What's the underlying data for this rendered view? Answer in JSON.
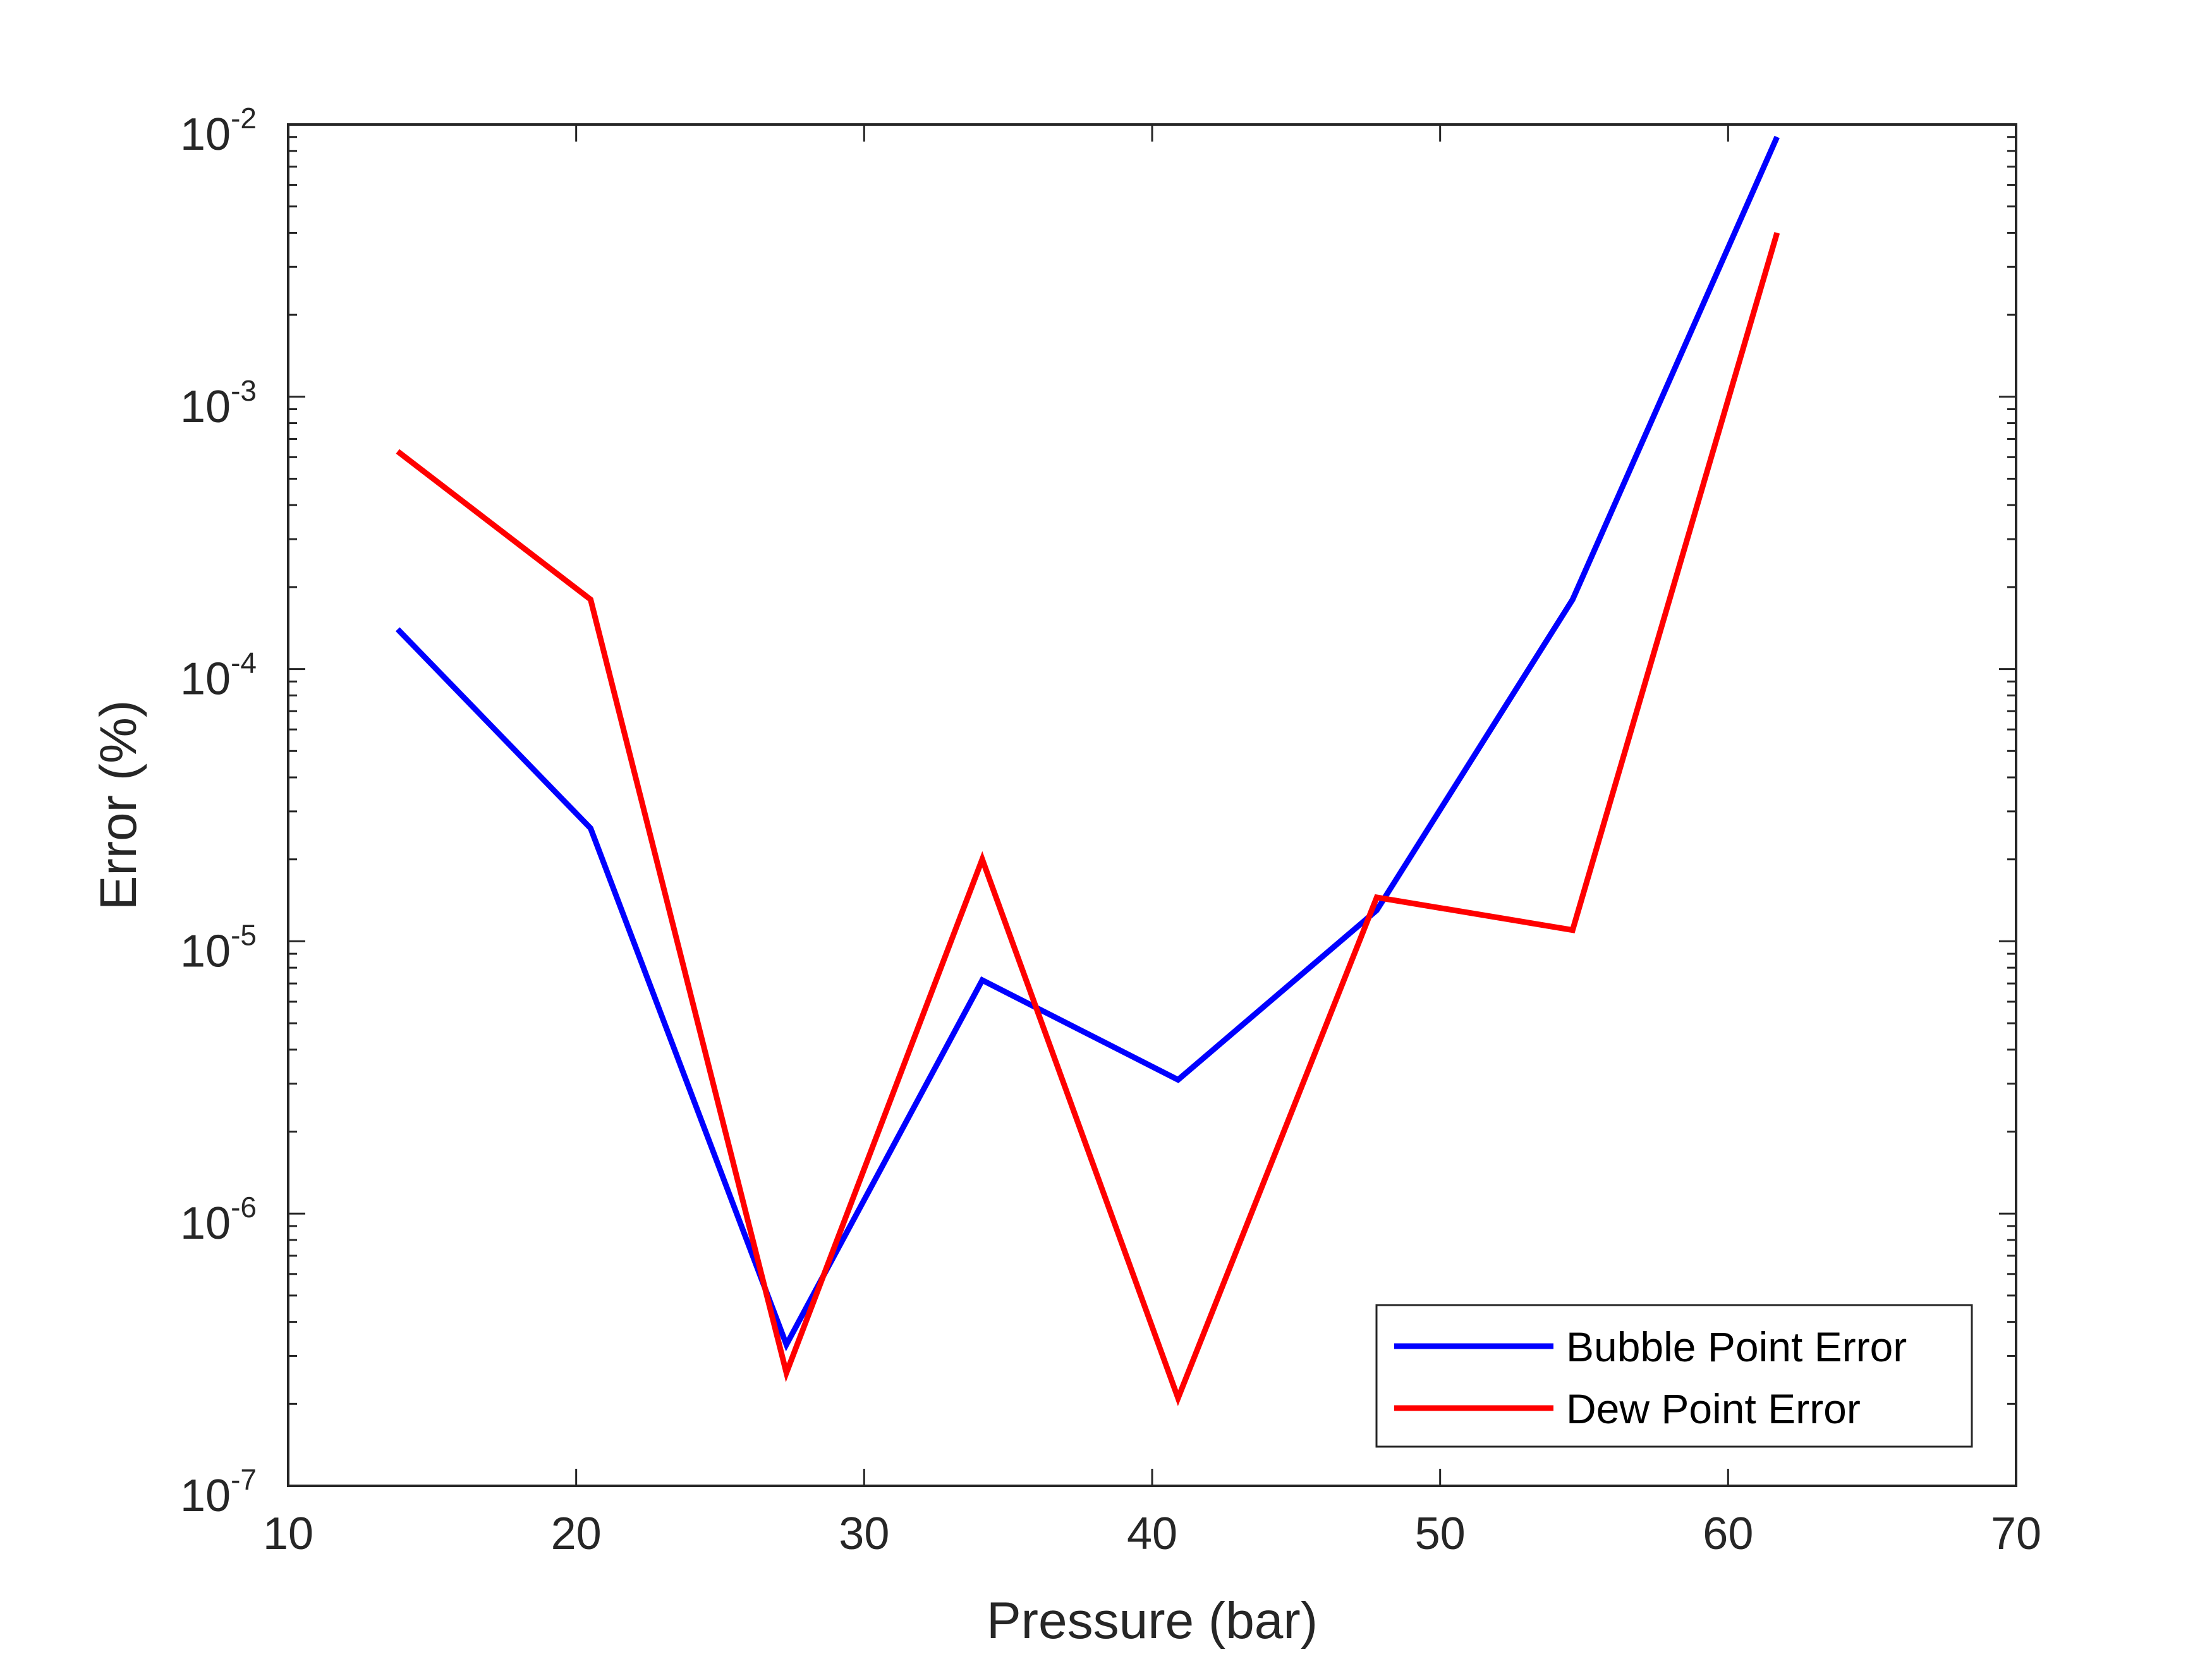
{
  "chart_data": {
    "type": "line",
    "title": "",
    "xlabel": "Pressure (bar)",
    "ylabel": "Error (%)",
    "xlim": [
      10,
      70
    ],
    "ylim": [
      1e-07,
      0.01
    ],
    "yscale": "log",
    "grid": false,
    "legend_position": "bottom-right",
    "x_ticks": [
      {
        "value": 10,
        "label": "10"
      },
      {
        "value": 20,
        "label": "20"
      },
      {
        "value": 30,
        "label": "30"
      },
      {
        "value": 40,
        "label": "40"
      },
      {
        "value": 50,
        "label": "50"
      },
      {
        "value": 60,
        "label": "60"
      },
      {
        "value": 70,
        "label": "70"
      }
    ],
    "y_ticks": [
      {
        "value": 1e-07,
        "base": "10",
        "exp": "-7"
      },
      {
        "value": 1e-06,
        "base": "10",
        "exp": "-6"
      },
      {
        "value": 1e-05,
        "base": "10",
        "exp": "-5"
      },
      {
        "value": 0.0001,
        "base": "10",
        "exp": "-4"
      },
      {
        "value": 0.001,
        "base": "10",
        "exp": "-3"
      },
      {
        "value": 0.01,
        "base": "10",
        "exp": "-2"
      }
    ],
    "series": [
      {
        "name": "Bubble Point Error",
        "color": "#0000ff",
        "x": [
          13.8,
          20.5,
          27.3,
          34.1,
          40.9,
          47.8,
          54.6,
          61.7
        ],
        "y": [
          0.00014,
          2.6e-05,
          3.3e-07,
          7.2e-06,
          3.1e-06,
          1.3e-05,
          0.00018,
          0.009
        ]
      },
      {
        "name": "Dew Point Error",
        "color": "#ff0000",
        "x": [
          13.8,
          20.5,
          27.3,
          34.1,
          40.9,
          47.8,
          54.6,
          61.7
        ],
        "y": [
          0.00063,
          0.00018,
          2.6e-07,
          2e-05,
          2.1e-07,
          1.45e-05,
          1.1e-05,
          0.004
        ]
      }
    ]
  }
}
